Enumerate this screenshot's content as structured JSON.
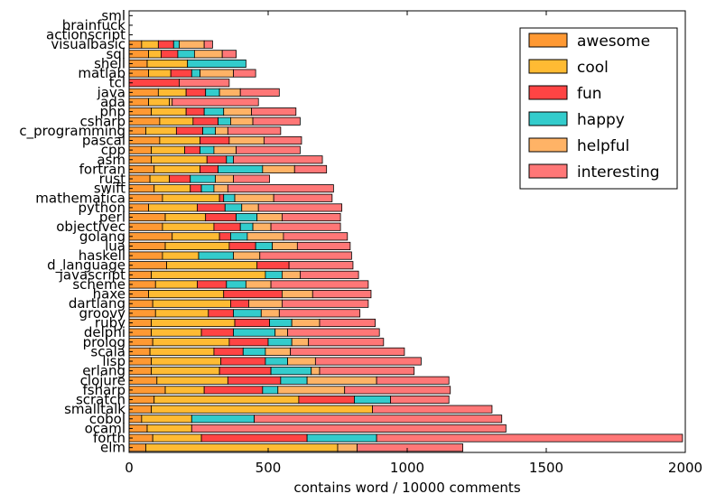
{
  "chart_data": {
    "type": "bar",
    "orientation": "horizontal",
    "stacked": true,
    "xlabel": "contains word / 10000 comments",
    "ylabel": "",
    "title": "",
    "xlim": [
      0,
      2000
    ],
    "xticks": [
      0,
      500,
      1000,
      1500,
      2000
    ],
    "grid": false,
    "legend_position": "top-right",
    "categories": [
      "sml",
      "brainfuck",
      "actionscript",
      "visualbasic",
      "sql",
      "shell",
      "matlab",
      "tcl",
      "java",
      "ada",
      "php",
      "csharp",
      "c_programming",
      "pascal",
      "cpp",
      "asm",
      "fortran",
      "rust",
      "swift",
      "mathematica",
      "python",
      "perl",
      "objectivec",
      "golang",
      "lua",
      "haskell",
      "d_language",
      "javascript",
      "scheme",
      "haxe",
      "dartlang",
      "groovy",
      "ruby",
      "delphi",
      "prolog",
      "scala",
      "lisp",
      "erlang",
      "clojure",
      "fsharp",
      "scratch",
      "smalltalk",
      "cobol",
      "ocaml",
      "forth",
      "elm"
    ],
    "series": [
      {
        "name": "awesome",
        "color": "#ff9933",
        "values": [
          0,
          0,
          0,
          45,
          70,
          65,
          70,
          0,
          105,
          70,
          80,
          110,
          60,
          110,
          80,
          80,
          90,
          75,
          90,
          120,
          70,
          130,
          120,
          155,
          130,
          120,
          135,
          80,
          95,
          70,
          85,
          95,
          80,
          80,
          85,
          75,
          80,
          80,
          100,
          130,
          90,
          80,
          45,
          65,
          85,
          60
        ]
      },
      {
        "name": "cool",
        "color": "#ffbb33",
        "values": [
          0,
          0,
          0,
          60,
          45,
          145,
          80,
          0,
          100,
          75,
          125,
          120,
          110,
          145,
          120,
          200,
          165,
          70,
          130,
          205,
          175,
          145,
          185,
          170,
          230,
          130,
          325,
          410,
          150,
          270,
          280,
          190,
          300,
          180,
          275,
          230,
          250,
          245,
          255,
          140,
          520,
          795,
          180,
          160,
          175,
          690
        ]
      },
      {
        "name": "fun",
        "color": "#ff4444",
        "values": [
          0,
          0,
          0,
          55,
          60,
          0,
          75,
          180,
          70,
          0,
          65,
          90,
          95,
          105,
          55,
          70,
          65,
          75,
          40,
          15,
          100,
          110,
          95,
          40,
          95,
          0,
          115,
          0,
          105,
          210,
          65,
          90,
          125,
          115,
          140,
          105,
          160,
          185,
          190,
          210,
          200,
          0,
          0,
          0,
          380,
          0
        ]
      },
      {
        "name": "happy",
        "color": "#33cccc",
        "values": [
          0,
          0,
          0,
          20,
          60,
          210,
          30,
          0,
          50,
          0,
          70,
          45,
          45,
          0,
          50,
          25,
          160,
          90,
          45,
          40,
          60,
          75,
          45,
          60,
          60,
          125,
          0,
          60,
          70,
          0,
          0,
          100,
          80,
          150,
          85,
          80,
          80,
          145,
          95,
          55,
          130,
          0,
          225,
          0,
          250,
          0
        ]
      },
      {
        "name": "helpful",
        "color": "#ffb366",
        "values": [
          0,
          0,
          0,
          90,
          100,
          0,
          120,
          0,
          75,
          10,
          100,
          80,
          45,
          125,
          80,
          0,
          115,
          65,
          50,
          140,
          60,
          90,
          65,
          130,
          90,
          95,
          0,
          65,
          90,
          110,
          120,
          65,
          100,
          45,
          60,
          90,
          100,
          30,
          250,
          240,
          0,
          0,
          0,
          0,
          0,
          70
        ]
      },
      {
        "name": "interesting",
        "color": "#ff7777",
        "values": [
          0,
          0,
          0,
          30,
          50,
          0,
          80,
          180,
          140,
          310,
          160,
          170,
          190,
          135,
          230,
          320,
          115,
          130,
          380,
          210,
          300,
          210,
          250,
          230,
          190,
          330,
          230,
          210,
          350,
          210,
          310,
          290,
          200,
          330,
          270,
          410,
          380,
          340,
          260,
          380,
          210,
          430,
          890,
          1130,
          1100,
          380
        ]
      }
    ]
  }
}
